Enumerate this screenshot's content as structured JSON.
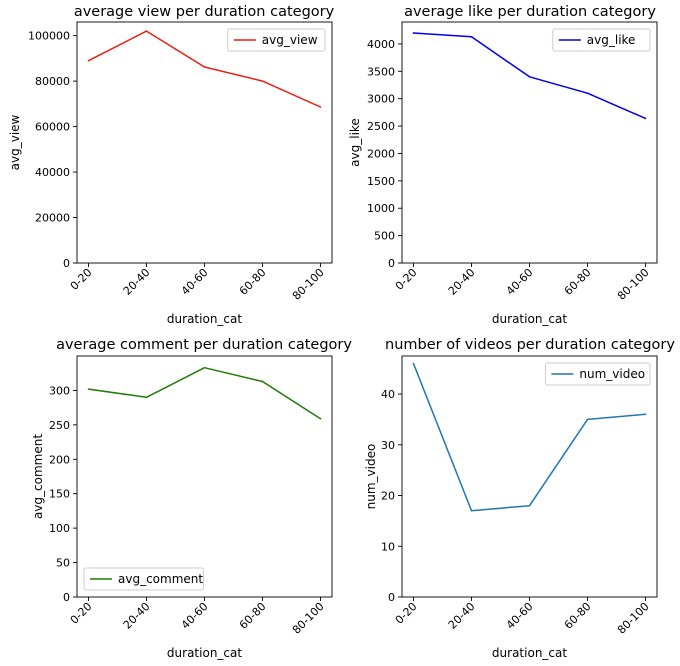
{
  "chart_data": [
    {
      "type": "line",
      "title": "average view per duration category",
      "xlabel": "duration_cat",
      "ylabel": "avg_view",
      "categories": [
        "0-20",
        "20-40",
        "40-60",
        "60-80",
        "80-100"
      ],
      "series": [
        {
          "name": "avg_view",
          "color": "#ee1c0e",
          "values": [
            89000,
            102000,
            86200,
            80000,
            68600
          ]
        }
      ],
      "ylim": [
        0,
        106000
      ],
      "yticks": [
        0,
        20000,
        40000,
        60000,
        80000,
        100000
      ],
      "ytick_labels": [
        "0",
        "20000",
        "40000",
        "60000",
        "80000",
        "100000"
      ],
      "legend": "upper right",
      "grid": false
    },
    {
      "type": "line",
      "title": "average like per duration category",
      "xlabel": "duration_cat",
      "ylabel": "avg_like",
      "categories": [
        "0-20",
        "20-40",
        "40-60",
        "60-80",
        "80-100"
      ],
      "series": [
        {
          "name": "avg_like",
          "color": "#0000ee",
          "values": [
            4200,
            4130,
            3400,
            3100,
            2640
          ]
        }
      ],
      "ylim": [
        0,
        4400
      ],
      "yticks": [
        0,
        500,
        1000,
        1500,
        2000,
        2500,
        3000,
        3500,
        4000
      ],
      "ytick_labels": [
        "0",
        "500",
        "1000",
        "1500",
        "2000",
        "2500",
        "3000",
        "3500",
        "4000"
      ],
      "legend": "upper right",
      "grid": false
    },
    {
      "type": "line",
      "title": "average comment per duration category",
      "xlabel": "duration_cat",
      "ylabel": "avg_comment",
      "categories": [
        "0-20",
        "20-40",
        "40-60",
        "60-80",
        "80-100"
      ],
      "series": [
        {
          "name": "avg_comment",
          "color": "#1f7d04",
          "values": [
            302,
            290,
            333,
            313,
            259
          ]
        }
      ],
      "ylim": [
        0,
        350
      ],
      "yticks": [
        0,
        50,
        100,
        150,
        200,
        250,
        300
      ],
      "ytick_labels": [
        "0",
        "50",
        "100",
        "150",
        "200",
        "250",
        "300"
      ],
      "legend": "lower left",
      "grid": false
    },
    {
      "type": "line",
      "title": "number of videos per duration category",
      "xlabel": "duration_cat",
      "ylabel": "num_video",
      "categories": [
        "0-20",
        "20-40",
        "40-60",
        "60-80",
        "80-100"
      ],
      "series": [
        {
          "name": "num_video",
          "color": "#1f77b4",
          "values": [
            46,
            17,
            18,
            35,
            36
          ]
        }
      ],
      "ylim": [
        0,
        47.5
      ],
      "yticks": [
        0,
        10,
        20,
        30,
        40
      ],
      "ytick_labels": [
        "0",
        "10",
        "20",
        "30",
        "40"
      ],
      "legend": "upper right",
      "grid": false
    }
  ]
}
